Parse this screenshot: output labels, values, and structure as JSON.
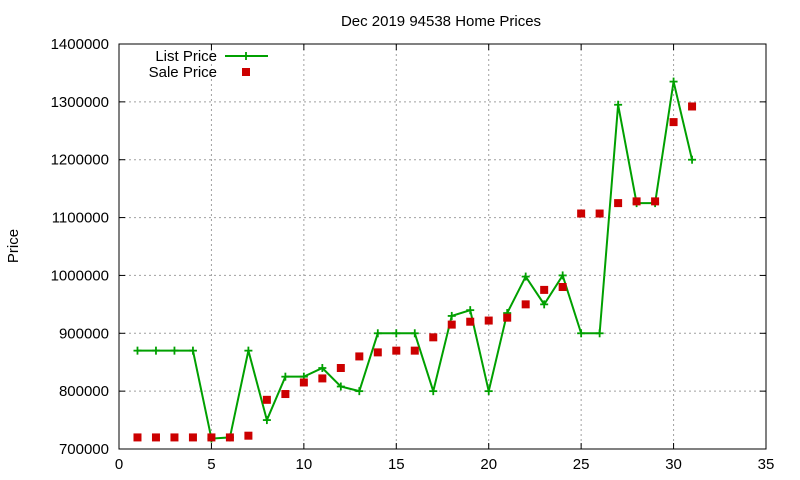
{
  "chart_data": {
    "type": "line",
    "title": "Dec 2019 94538 Home Prices",
    "xlabel": "",
    "ylabel": "Price",
    "xlim": [
      0,
      35
    ],
    "ylim": [
      700000,
      1400000
    ],
    "x_ticks": [
      0,
      5,
      10,
      15,
      20,
      25,
      30,
      35
    ],
    "y_ticks": [
      700000,
      800000,
      900000,
      1000000,
      1100000,
      1200000,
      1300000,
      1400000
    ],
    "x_tick_labels": [
      "0",
      "5",
      "10",
      "15",
      "20",
      "25",
      "30",
      "35"
    ],
    "y_tick_labels": [
      "700000",
      "800000",
      "900000",
      "1000000",
      "1100000",
      "1200000",
      "1300000",
      "1400000"
    ],
    "grid": true,
    "legend_position": "top-left",
    "series": [
      {
        "name": "List Price",
        "kind": "line-points",
        "color": "#00a000",
        "marker": "plus",
        "x": [
          1,
          2,
          3,
          4,
          5,
          6,
          7,
          8,
          9,
          10,
          11,
          12,
          13,
          14,
          15,
          16,
          17,
          18,
          19,
          20,
          21,
          22,
          23,
          24,
          25,
          26,
          27,
          28,
          29,
          30,
          31
        ],
        "y": [
          870000,
          870000,
          870000,
          870000,
          718000,
          720000,
          870000,
          750000,
          825000,
          825000,
          840000,
          808000,
          800000,
          900000,
          900000,
          900000,
          800000,
          930000,
          940000,
          800000,
          935000,
          998000,
          950000,
          1000000,
          900000,
          900000,
          1295000,
          1125000,
          1125000,
          1335000,
          1200000
        ]
      },
      {
        "name": "Sale Price",
        "kind": "points",
        "color": "#cc0000",
        "marker": "square",
        "x": [
          1,
          2,
          3,
          4,
          5,
          6,
          7,
          8,
          9,
          10,
          11,
          12,
          13,
          14,
          15,
          16,
          17,
          18,
          19,
          20,
          21,
          22,
          23,
          24,
          25,
          26,
          27,
          28,
          29,
          30,
          31
        ],
        "y": [
          720000,
          720000,
          720000,
          720000,
          720000,
          720000,
          723000,
          785000,
          795000,
          815000,
          822000,
          840000,
          860000,
          867000,
          870000,
          870000,
          893000,
          915000,
          920000,
          922000,
          927000,
          950000,
          975000,
          980000,
          1107000,
          1107000,
          1125000,
          1128000,
          1128000,
          1265000,
          1292000
        ]
      }
    ]
  }
}
